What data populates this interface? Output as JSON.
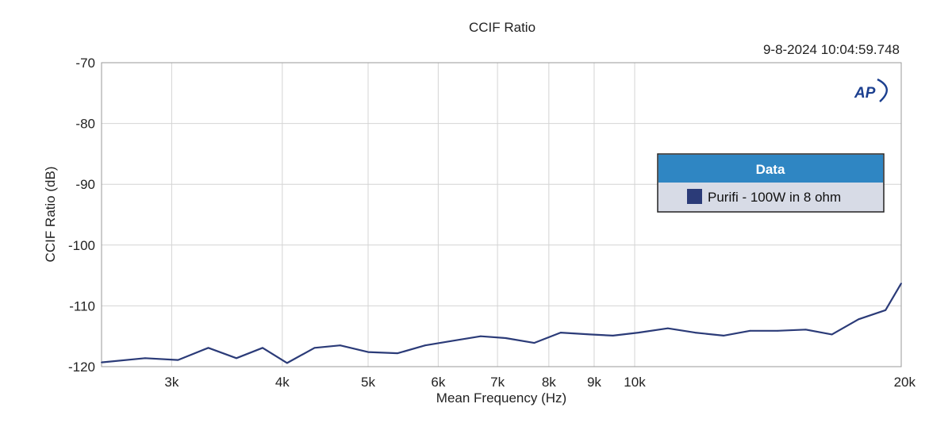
{
  "chart_data": {
    "type": "line",
    "title": "CCIF Ratio",
    "timestamp": "9-8-2024 10:04:59.748",
    "xlabel": "Mean Frequency (Hz)",
    "ylabel": "CCIF Ratio (dB)",
    "x_scale": "log",
    "xlim": [
      2500,
      20000
    ],
    "ylim": [
      -120,
      -70
    ],
    "x_ticks": [
      {
        "value": 3000,
        "label": "3k"
      },
      {
        "value": 4000,
        "label": "4k"
      },
      {
        "value": 5000,
        "label": "5k"
      },
      {
        "value": 6000,
        "label": "6k"
      },
      {
        "value": 7000,
        "label": "7k"
      },
      {
        "value": 8000,
        "label": "8k"
      },
      {
        "value": 9000,
        "label": "9k"
      },
      {
        "value": 10000,
        "label": "10k"
      },
      {
        "value": 20000,
        "label": "20k"
      }
    ],
    "y_ticks": [
      {
        "value": -70,
        "label": "-70"
      },
      {
        "value": -80,
        "label": "-80"
      },
      {
        "value": -90,
        "label": "-90"
      },
      {
        "value": -100,
        "label": "-100"
      },
      {
        "value": -110,
        "label": "-110"
      },
      {
        "value": -120,
        "label": "-120"
      }
    ],
    "grid": true,
    "legend": {
      "title": "Data",
      "placement": "top-right"
    },
    "series": [
      {
        "name": "Purifi - 100W in 8 ohm",
        "color": "#2b3b78",
        "points": [
          {
            "x": 2500,
            "y": -119.3
          },
          {
            "x": 2800,
            "y": -118.6
          },
          {
            "x": 3050,
            "y": -118.9
          },
          {
            "x": 3300,
            "y": -116.9
          },
          {
            "x": 3550,
            "y": -118.6
          },
          {
            "x": 3800,
            "y": -116.9
          },
          {
            "x": 4050,
            "y": -119.4
          },
          {
            "x": 4350,
            "y": -116.9
          },
          {
            "x": 4650,
            "y": -116.5
          },
          {
            "x": 5000,
            "y": -117.6
          },
          {
            "x": 5400,
            "y": -117.8
          },
          {
            "x": 5800,
            "y": -116.5
          },
          {
            "x": 6200,
            "y": -115.8
          },
          {
            "x": 6700,
            "y": -115.0
          },
          {
            "x": 7150,
            "y": -115.3
          },
          {
            "x": 7700,
            "y": -116.1
          },
          {
            "x": 8250,
            "y": -114.4
          },
          {
            "x": 8900,
            "y": -114.7
          },
          {
            "x": 9450,
            "y": -114.9
          },
          {
            "x": 10100,
            "y": -114.4
          },
          {
            "x": 10900,
            "y": -113.7
          },
          {
            "x": 11700,
            "y": -114.4
          },
          {
            "x": 12600,
            "y": -114.9
          },
          {
            "x": 13500,
            "y": -114.1
          },
          {
            "x": 14500,
            "y": -114.1
          },
          {
            "x": 15600,
            "y": -113.9
          },
          {
            "x": 16700,
            "y": -114.7
          },
          {
            "x": 17900,
            "y": -112.2
          },
          {
            "x": 19200,
            "y": -110.7
          },
          {
            "x": 20000,
            "y": -106.3
          }
        ]
      }
    ]
  },
  "logo": {
    "text": "AP"
  }
}
